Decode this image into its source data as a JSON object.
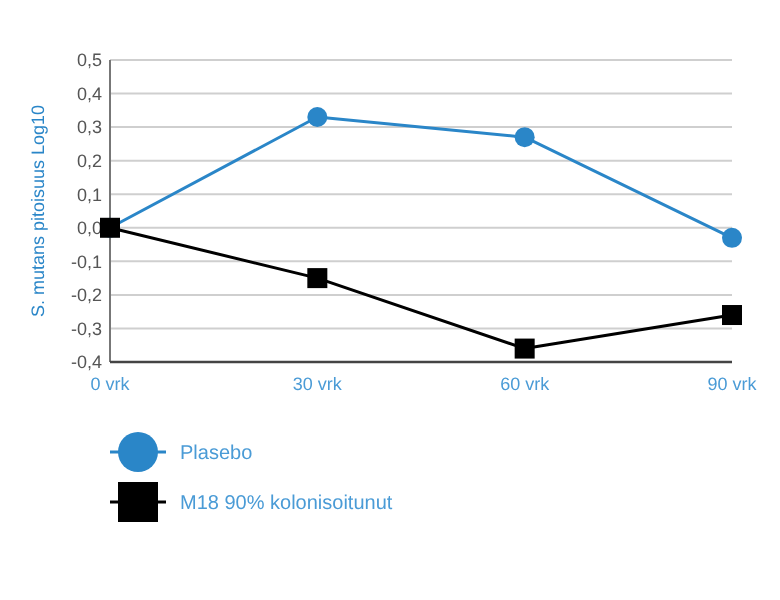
{
  "chart_data": {
    "type": "line",
    "ylabel": "S. mutans pitoisuus Log10",
    "categories": [
      "0 vrk",
      "30 vrk",
      "60 vrk",
      "90 vrk"
    ],
    "series": [
      {
        "name": "Plasebo",
        "color": "#2a86c8",
        "marker": "circle",
        "values": [
          0,
          0.33,
          0.27,
          -0.03
        ]
      },
      {
        "name": "M18 90% kolonisoitunut",
        "color": "#000000",
        "marker": "square",
        "values": [
          0,
          -0.15,
          -0.36,
          -0.26
        ]
      }
    ],
    "ylim": [
      -0.4,
      0.5
    ],
    "yticks": [
      {
        "value": -0.4,
        "label": "-0,4"
      },
      {
        "value": -0.3,
        "label": "-0,3"
      },
      {
        "value": -0.2,
        "label": "-0,2"
      },
      {
        "value": -0.1,
        "label": "-0,1"
      },
      {
        "value": 0,
        "label": "0,0"
      },
      {
        "value": 0.1,
        "label": "0,1"
      },
      {
        "value": 0.2,
        "label": "0,2"
      },
      {
        "value": 0.3,
        "label": "0,3"
      },
      {
        "value": 0.4,
        "label": "0,4"
      },
      {
        "value": 0.5,
        "label": "0,5"
      }
    ],
    "grid": "y",
    "legend": "bottom left"
  }
}
